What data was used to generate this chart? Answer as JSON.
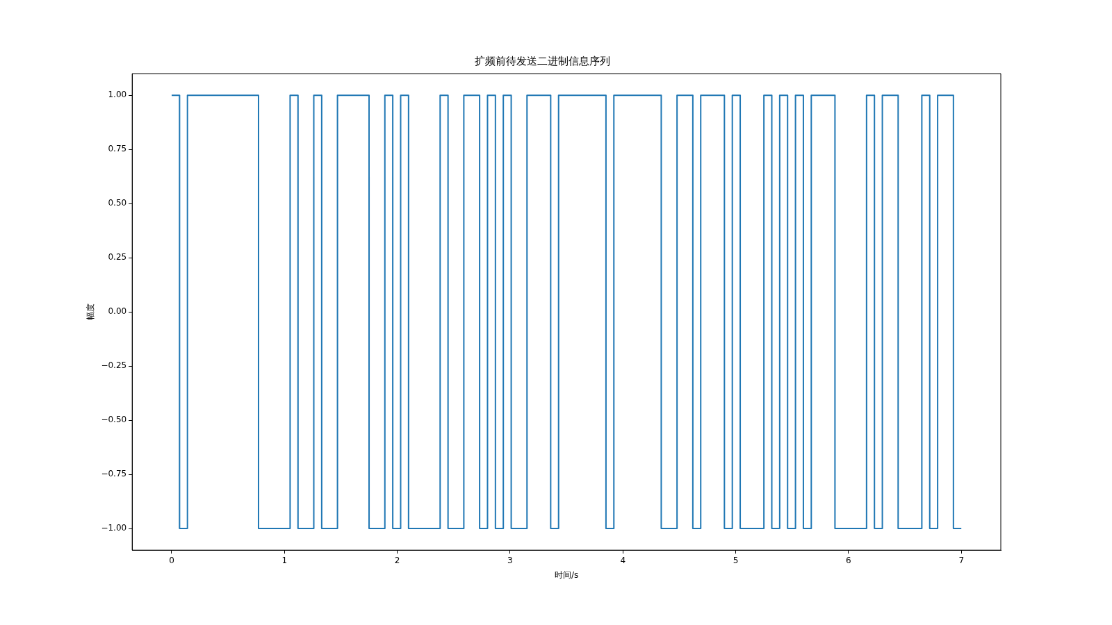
{
  "chart_data": {
    "type": "step",
    "title": "扩频前待发送二进制信息序列",
    "xlabel": "时间/s",
    "ylabel": "幅度",
    "x": [
      0,
      0.07,
      0.14,
      0.77,
      1.05,
      1.12,
      1.26,
      1.33,
      1.47,
      1.75,
      1.89,
      1.96,
      2.03,
      2.1,
      2.38,
      2.45,
      2.59,
      2.73,
      2.8,
      2.87,
      2.94,
      3.01,
      3.15,
      3.36,
      3.43,
      3.85,
      3.92,
      4.34,
      4.48,
      4.62,
      4.69,
      4.9,
      4.97,
      5.04,
      5.25,
      5.32,
      5.39,
      5.46,
      5.53,
      5.6,
      5.67,
      5.88,
      6.16,
      6.23,
      6.3,
      6.44,
      6.65,
      6.72,
      6.79,
      6.93,
      7.0
    ],
    "values": [
      1,
      -1,
      1,
      -1,
      1,
      -1,
      1,
      -1,
      1,
      -1,
      1,
      -1,
      1,
      -1,
      1,
      -1,
      1,
      -1,
      1,
      -1,
      1,
      -1,
      1,
      -1,
      1,
      -1,
      1,
      -1,
      1,
      -1,
      1,
      -1,
      1,
      -1,
      1,
      -1,
      1,
      -1,
      1,
      -1,
      1,
      -1,
      1,
      -1,
      1,
      -1,
      1,
      -1,
      1,
      -1,
      -1
    ],
    "color": "#1f77b4",
    "xlim": [
      -0.35,
      7.35
    ],
    "xticks": [
      0,
      1,
      2,
      3,
      4,
      5,
      6,
      7
    ],
    "ylim": [
      -1.1,
      1.1
    ],
    "yticks": [
      {
        "value": -1,
        "label": "−1.00"
      },
      {
        "value": -0.75,
        "label": "−0.75"
      },
      {
        "value": -0.5,
        "label": "−0.50"
      },
      {
        "value": -0.25,
        "label": "−0.25"
      },
      {
        "value": 0,
        "label": "0.00"
      },
      {
        "value": 0.25,
        "label": "0.25"
      },
      {
        "value": 0.5,
        "label": "0.50"
      },
      {
        "value": 0.75,
        "label": "0.75"
      },
      {
        "value": 1,
        "label": "1.00"
      }
    ],
    "grid": false,
    "legend": false
  }
}
